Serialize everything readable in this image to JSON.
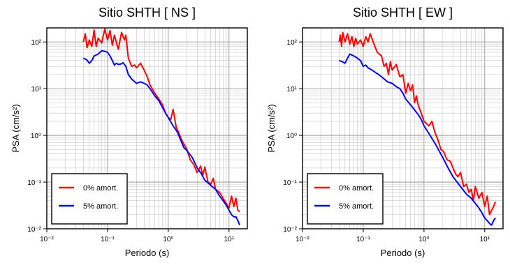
{
  "colors": {
    "undamped": "#ff0000",
    "damped": "#0000ff"
  },
  "chart_data": [
    {
      "type": "line",
      "title": "Sitio SHTH [ NS ]",
      "xlabel": "Periodo (s)",
      "ylabel": "PSA (cm/s²)",
      "xscale": "log",
      "yscale": "log",
      "xlim": [
        0.01,
        20
      ],
      "ylim": [
        0.01,
        200
      ],
      "xtick_labels": [
        "10⁻²",
        "10⁻¹",
        "10⁰",
        "10¹"
      ],
      "ytick_labels": [
        "10⁻²",
        "10⁻¹",
        "10⁰",
        "10¹",
        "10²"
      ],
      "grid": true,
      "legend_position": "bottom-left",
      "series": [
        {
          "name": "0% amort.",
          "color": "#ff0000",
          "points": [
            [
              0.04,
              100
            ],
            [
              0.043,
              150
            ],
            [
              0.046,
              75
            ],
            [
              0.05,
              110
            ],
            [
              0.055,
              80
            ],
            [
              0.06,
              180
            ],
            [
              0.065,
              80
            ],
            [
              0.07,
              120
            ],
            [
              0.08,
              95
            ],
            [
              0.09,
              190
            ],
            [
              0.1,
              110
            ],
            [
              0.11,
              175
            ],
            [
              0.12,
              85
            ],
            [
              0.13,
              140
            ],
            [
              0.15,
              70
            ],
            [
              0.17,
              160
            ],
            [
              0.19,
              110
            ],
            [
              0.2,
              140
            ],
            [
              0.22,
              45
            ],
            [
              0.25,
              30
            ],
            [
              0.28,
              32
            ],
            [
              0.3,
              28
            ],
            [
              0.35,
              35
            ],
            [
              0.4,
              25
            ],
            [
              0.45,
              18
            ],
            [
              0.5,
              12
            ],
            [
              0.6,
              8
            ],
            [
              0.7,
              6
            ],
            [
              0.8,
              4.5
            ],
            [
              0.9,
              3
            ],
            [
              1.0,
              2.4
            ],
            [
              1.1,
              2.2
            ],
            [
              1.2,
              3.6
            ],
            [
              1.35,
              1.5
            ],
            [
              1.5,
              1.1
            ],
            [
              1.7,
              0.75
            ],
            [
              2.0,
              0.52
            ],
            [
              2.3,
              0.3
            ],
            [
              2.6,
              0.24
            ],
            [
              3.0,
              0.16
            ],
            [
              3.4,
              0.22
            ],
            [
              3.7,
              0.14
            ],
            [
              4.0,
              0.21
            ],
            [
              4.5,
              0.1
            ],
            [
              5.0,
              0.09
            ],
            [
              5.5,
              0.12
            ],
            [
              6.0,
              0.07
            ],
            [
              7.0,
              0.06
            ],
            [
              8.0,
              0.045
            ],
            [
              9.0,
              0.035
            ],
            [
              10.0,
              0.028
            ],
            [
              11.0,
              0.05
            ],
            [
              12.0,
              0.03
            ],
            [
              13.0,
              0.045
            ],
            [
              14.0,
              0.025
            ],
            [
              15.0,
              0.023
            ]
          ]
        },
        {
          "name": "5% amort.",
          "color": "#0000ff",
          "points": [
            [
              0.04,
              45
            ],
            [
              0.045,
              42
            ],
            [
              0.05,
              35
            ],
            [
              0.055,
              40
            ],
            [
              0.06,
              50
            ],
            [
              0.07,
              55
            ],
            [
              0.08,
              65
            ],
            [
              0.09,
              63
            ],
            [
              0.1,
              60
            ],
            [
              0.11,
              50
            ],
            [
              0.12,
              40
            ],
            [
              0.13,
              32
            ],
            [
              0.14,
              35
            ],
            [
              0.15,
              33
            ],
            [
              0.17,
              34
            ],
            [
              0.18,
              36
            ],
            [
              0.2,
              30
            ],
            [
              0.22,
              20
            ],
            [
              0.25,
              16
            ],
            [
              0.3,
              13
            ],
            [
              0.35,
              14
            ],
            [
              0.4,
              13
            ],
            [
              0.45,
              12
            ],
            [
              0.5,
              10
            ],
            [
              0.6,
              7
            ],
            [
              0.7,
              5.5
            ],
            [
              0.8,
              4
            ],
            [
              0.9,
              3
            ],
            [
              1.0,
              2.4
            ],
            [
              1.2,
              1.6
            ],
            [
              1.4,
              1.2
            ],
            [
              1.6,
              0.8
            ],
            [
              1.8,
              0.55
            ],
            [
              2.0,
              0.48
            ],
            [
              2.5,
              0.33
            ],
            [
              3.0,
              0.2
            ],
            [
              3.5,
              0.15
            ],
            [
              4.0,
              0.11
            ],
            [
              5.0,
              0.085
            ],
            [
              6.0,
              0.07
            ],
            [
              7.0,
              0.05
            ],
            [
              8.0,
              0.04
            ],
            [
              9.0,
              0.032
            ],
            [
              10.0,
              0.025
            ],
            [
              11.0,
              0.02
            ],
            [
              12.0,
              0.018
            ],
            [
              13.0,
              0.018
            ],
            [
              14.0,
              0.015
            ],
            [
              15.0,
              0.012
            ]
          ]
        }
      ]
    },
    {
      "type": "line",
      "title": "Sitio SHTH [ EW ]",
      "xlabel": "Periodo (s)",
      "ylabel": "PSA (cm/s²)",
      "xscale": "log",
      "yscale": "log",
      "xlim": [
        0.01,
        20
      ],
      "ylim": [
        0.01,
        200
      ],
      "xtick_labels": [
        "10⁻²",
        "10⁻¹",
        "10⁰",
        "10¹"
      ],
      "ytick_labels": [
        "10⁻²",
        "10⁻¹",
        "10⁰",
        "10¹",
        "10²"
      ],
      "grid": true,
      "legend_position": "bottom-left",
      "series": [
        {
          "name": "0% amort.",
          "color": "#ff0000",
          "points": [
            [
              0.04,
              100
            ],
            [
              0.042,
              140
            ],
            [
              0.044,
              80
            ],
            [
              0.046,
              160
            ],
            [
              0.05,
              100
            ],
            [
              0.055,
              150
            ],
            [
              0.06,
              90
            ],
            [
              0.065,
              130
            ],
            [
              0.07,
              80
            ],
            [
              0.075,
              120
            ],
            [
              0.08,
              90
            ],
            [
              0.09,
              110
            ],
            [
              0.1,
              80
            ],
            [
              0.11,
              130
            ],
            [
              0.12,
              100
            ],
            [
              0.13,
              150
            ],
            [
              0.15,
              90
            ],
            [
              0.17,
              60
            ],
            [
              0.2,
              50
            ],
            [
              0.22,
              30
            ],
            [
              0.24,
              35
            ],
            [
              0.26,
              20
            ],
            [
              0.28,
              38
            ],
            [
              0.3,
              25
            ],
            [
              0.35,
              33
            ],
            [
              0.4,
              18
            ],
            [
              0.45,
              20
            ],
            [
              0.5,
              8
            ],
            [
              0.55,
              13
            ],
            [
              0.6,
              9
            ],
            [
              0.65,
              12
            ],
            [
              0.7,
              5
            ],
            [
              0.75,
              7
            ],
            [
              0.8,
              4.5
            ],
            [
              0.9,
              3
            ],
            [
              1.0,
              2
            ],
            [
              1.2,
              1.6
            ],
            [
              1.35,
              2
            ],
            [
              1.5,
              1.2
            ],
            [
              1.7,
              0.8
            ],
            [
              1.9,
              0.5
            ],
            [
              2.1,
              0.45
            ],
            [
              2.4,
              0.3
            ],
            [
              2.7,
              0.28
            ],
            [
              3.0,
              0.2
            ],
            [
              3.3,
              0.15
            ],
            [
              3.6,
              0.13
            ],
            [
              4.0,
              0.16
            ],
            [
              4.5,
              0.08
            ],
            [
              5.0,
              0.09
            ],
            [
              5.5,
              0.06
            ],
            [
              6.0,
              0.07
            ],
            [
              6.5,
              0.04
            ],
            [
              7.0,
              0.08
            ],
            [
              7.5,
              0.06
            ],
            [
              8.0,
              0.045
            ],
            [
              9.0,
              0.06
            ],
            [
              10.0,
              0.03
            ],
            [
              11.0,
              0.05
            ],
            [
              12.0,
              0.02
            ],
            [
              13.0,
              0.025
            ],
            [
              14.0,
              0.03
            ],
            [
              15.0,
              0.038
            ]
          ]
        },
        {
          "name": "5% amort.",
          "color": "#0000ff",
          "points": [
            [
              0.04,
              40
            ],
            [
              0.045,
              38
            ],
            [
              0.05,
              35
            ],
            [
              0.055,
              45
            ],
            [
              0.06,
              55
            ],
            [
              0.07,
              50
            ],
            [
              0.08,
              45
            ],
            [
              0.09,
              40
            ],
            [
              0.1,
              30
            ],
            [
              0.11,
              32
            ],
            [
              0.12,
              28
            ],
            [
              0.14,
              25
            ],
            [
              0.16,
              22
            ],
            [
              0.18,
              20
            ],
            [
              0.2,
              18
            ],
            [
              0.25,
              14
            ],
            [
              0.3,
              13
            ],
            [
              0.35,
              11
            ],
            [
              0.4,
              10
            ],
            [
              0.45,
              8
            ],
            [
              0.5,
              6
            ],
            [
              0.6,
              4.5
            ],
            [
              0.7,
              3.5
            ],
            [
              0.8,
              2.8
            ],
            [
              0.9,
              2.2
            ],
            [
              1.0,
              1.6
            ],
            [
              1.2,
              1.1
            ],
            [
              1.4,
              0.8
            ],
            [
              1.6,
              0.6
            ],
            [
              1.8,
              0.45
            ],
            [
              2.0,
              0.35
            ],
            [
              2.5,
              0.2
            ],
            [
              3.0,
              0.13
            ],
            [
              3.5,
              0.1
            ],
            [
              4.0,
              0.08
            ],
            [
              5.0,
              0.055
            ],
            [
              6.0,
              0.045
            ],
            [
              7.0,
              0.035
            ],
            [
              8.0,
              0.028
            ],
            [
              9.0,
              0.022
            ],
            [
              10.0,
              0.017
            ],
            [
              11.0,
              0.015
            ],
            [
              12.0,
              0.013
            ],
            [
              13.0,
              0.012
            ],
            [
              14.0,
              0.015
            ],
            [
              15.0,
              0.017
            ]
          ]
        }
      ]
    }
  ]
}
